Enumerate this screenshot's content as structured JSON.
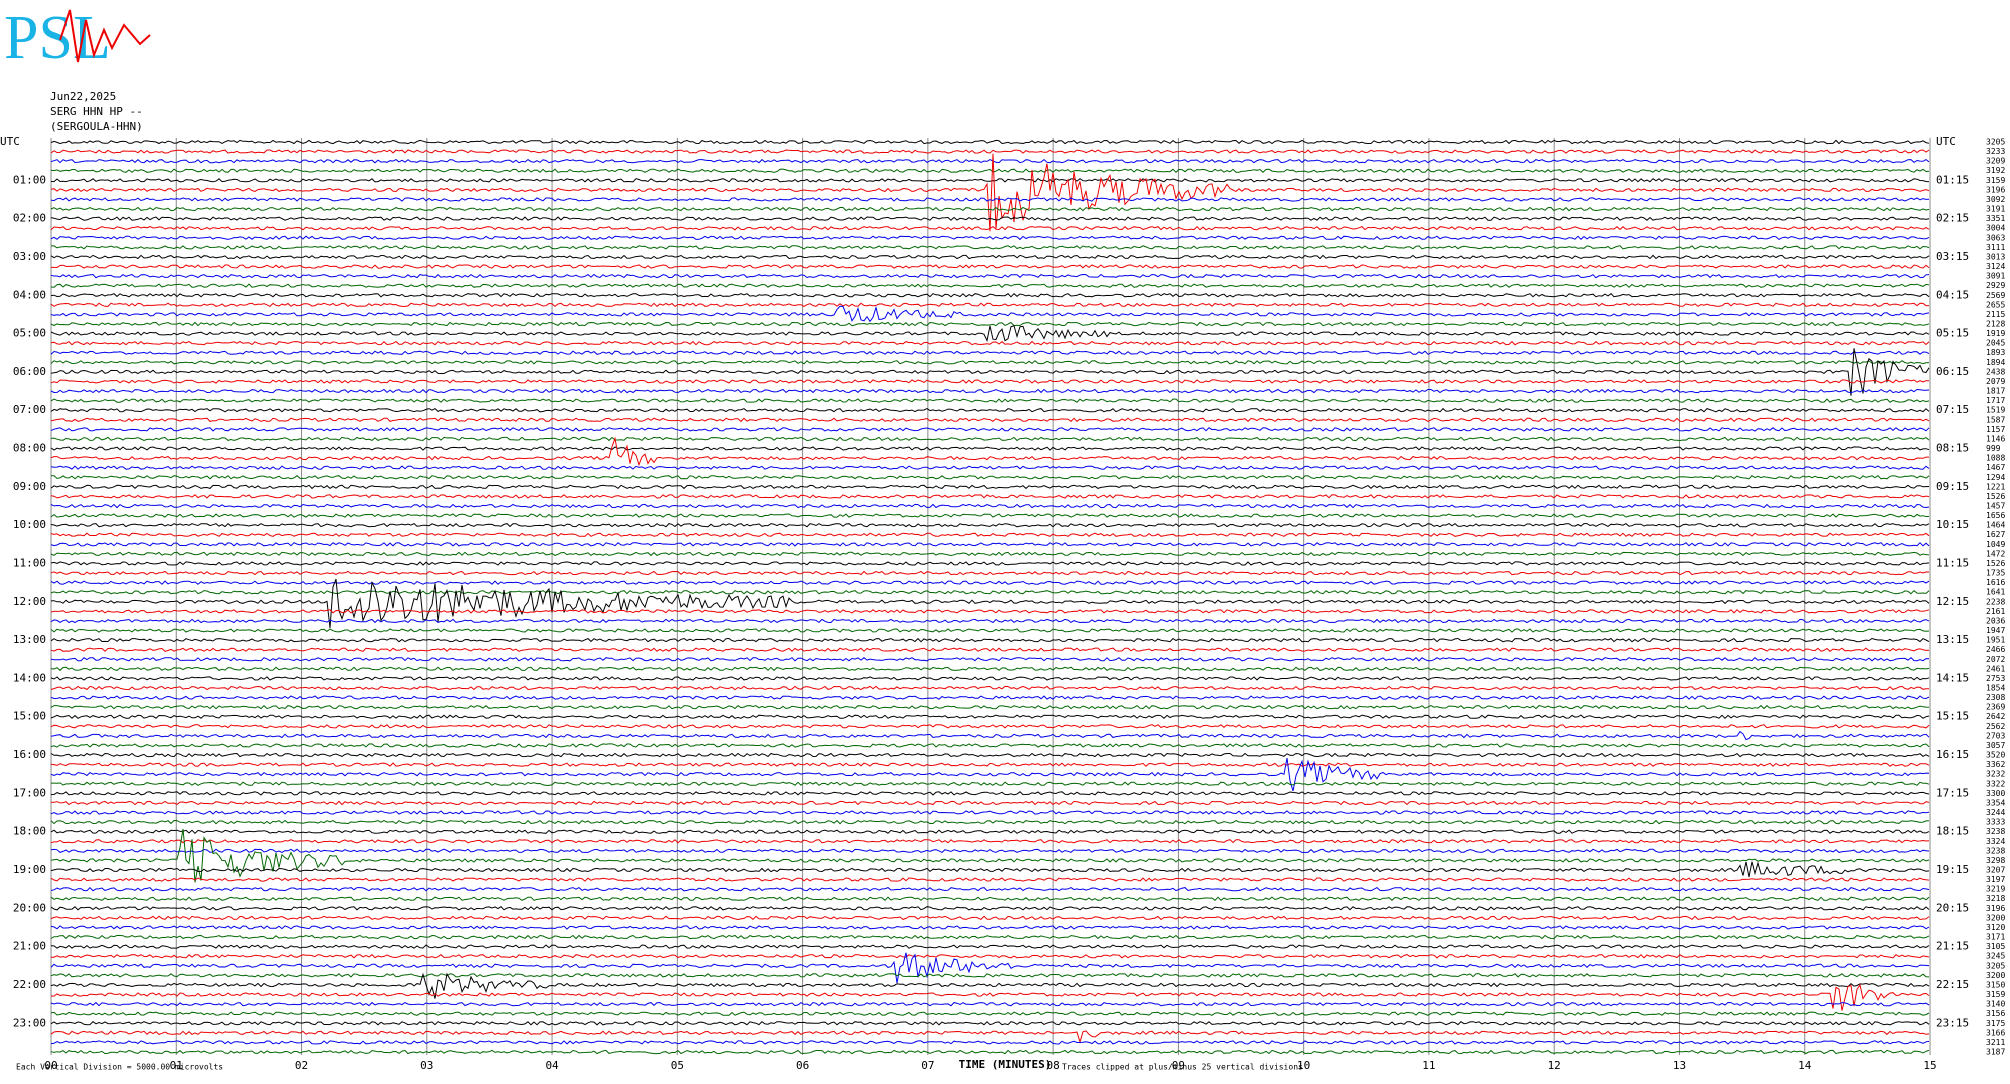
{
  "logo": {
    "letters": "PSL"
  },
  "header": {
    "date": "Jun22,2025",
    "station": "SERG HHN HP --",
    "name": "(SERGOULA-HHN)"
  },
  "left_labels": [
    "UTC",
    "01:00",
    "02:00",
    "03:00",
    "04:00",
    "05:00",
    "06:00",
    "07:00",
    "08:00",
    "09:00",
    "10:00",
    "11:00",
    "12:00",
    "13:00",
    "14:00",
    "15:00",
    "16:00",
    "17:00",
    "18:00",
    "19:00",
    "20:00",
    "21:00",
    "22:00",
    "23:00"
  ],
  "right_labels": [
    "UTC",
    "01:15",
    "02:15",
    "03:15",
    "04:15",
    "05:15",
    "06:15",
    "07:15",
    "08:15",
    "09:15",
    "10:15",
    "11:15",
    "12:15",
    "13:15",
    "14:15",
    "15:15",
    "16:15",
    "17:15",
    "18:15",
    "19:15",
    "20:15",
    "21:15",
    "22:15",
    "23:15"
  ],
  "x_ticks": [
    "00",
    "01",
    "02",
    "03",
    "04",
    "05",
    "06",
    "07",
    "08",
    "09",
    "10",
    "11",
    "12",
    "13",
    "14",
    "15"
  ],
  "x_title": "TIME (MINUTES)",
  "footer_left": "Each Vertical Division = 5000.00 microvolts",
  "footer_right": "Traces clipped at plus/minus 25 vertical divisions",
  "trace_values": [
    "3205",
    "3233",
    "3209",
    "3192",
    "3159",
    "3196",
    "3092",
    "3191",
    "3351",
    "3004",
    "3063",
    "3111",
    "3013",
    "3124",
    "3091",
    "2929",
    "2569",
    "2655",
    "2115",
    "2128",
    "1919",
    "2045",
    "1893",
    "1894",
    "2438",
    "2079",
    "1817",
    "1717",
    "1519",
    "1587",
    "1157",
    "1146",
    "999",
    "1088",
    "1467",
    "1294",
    "1221",
    "1526",
    "1457",
    "1656",
    "1464",
    "1627",
    "1049",
    "1472",
    "1526",
    "1735",
    "1616",
    "1641",
    "2238",
    "2161",
    "2036",
    "1947",
    "1951",
    "2466",
    "2072",
    "2461",
    "2753",
    "1854",
    "2308",
    "2369",
    "2642",
    "2562",
    "2703",
    "3057",
    "3520",
    "3362",
    "3232",
    "3322",
    "3300",
    "3354",
    "3244",
    "3333",
    "3238",
    "3324",
    "3238",
    "3298",
    "3207",
    "3197",
    "3219",
    "3218",
    "3196",
    "3200",
    "3120",
    "3171",
    "3105",
    "3245",
    "3205",
    "3200",
    "3150",
    "3159",
    "3140",
    "3156",
    "3175",
    "3166",
    "3211",
    "3187"
  ]
}
